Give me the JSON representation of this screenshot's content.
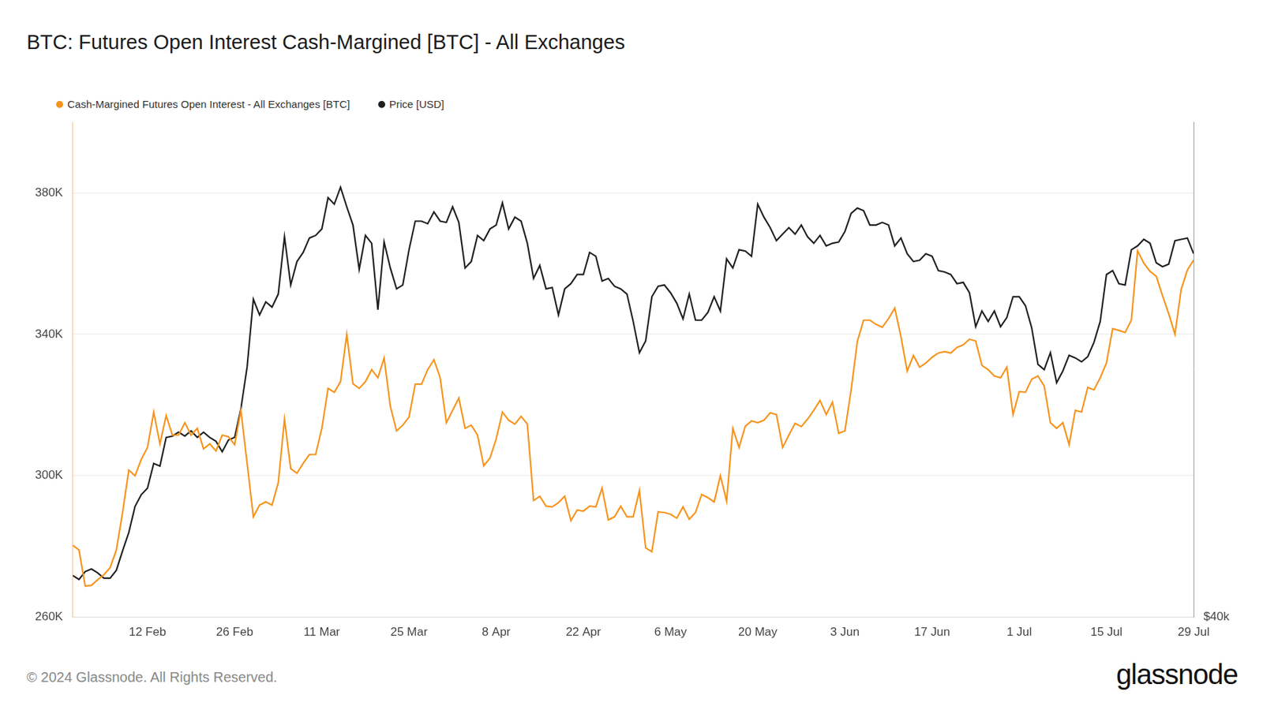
{
  "chart_data": {
    "type": "line",
    "title": "BTC: Futures Open Interest Cash-Margined [BTC] - All Exchanges",
    "categories": [
      null,
      null,
      null,
      null,
      null,
      null,
      null,
      null,
      null,
      null,
      null,
      null,
      "12 Feb",
      null,
      null,
      null,
      null,
      null,
      null,
      null,
      null,
      null,
      null,
      null,
      null,
      null,
      "26 Feb",
      null,
      null,
      null,
      null,
      null,
      null,
      null,
      null,
      null,
      null,
      null,
      null,
      null,
      "11 Mar",
      null,
      null,
      null,
      null,
      null,
      null,
      null,
      null,
      null,
      null,
      null,
      null,
      null,
      "25 Mar",
      null,
      null,
      null,
      null,
      null,
      null,
      null,
      null,
      null,
      null,
      null,
      null,
      null,
      "8 Apr",
      null,
      null,
      null,
      null,
      null,
      null,
      null,
      null,
      null,
      null,
      null,
      null,
      null,
      "22 Apr",
      null,
      null,
      null,
      null,
      null,
      null,
      null,
      null,
      null,
      null,
      null,
      null,
      null,
      "6 May",
      null,
      null,
      null,
      null,
      null,
      null,
      null,
      null,
      null,
      null,
      null,
      null,
      null,
      "20 May",
      null,
      null,
      null,
      null,
      null,
      null,
      null,
      null,
      null,
      null,
      null,
      null,
      null,
      "3 Jun",
      null,
      null,
      null,
      null,
      null,
      null,
      null,
      null,
      null,
      null,
      null,
      null,
      null,
      "17 Jun",
      null,
      null,
      null,
      null,
      null,
      null,
      null,
      null,
      null,
      null,
      null,
      null,
      null,
      "1 Jul",
      null,
      null,
      null,
      null,
      null,
      null,
      null,
      null,
      null,
      null,
      null,
      null,
      null,
      "15 Jul",
      null,
      null,
      null,
      null,
      null,
      null,
      null,
      null,
      null,
      null,
      null,
      null,
      null,
      "29 Jul"
    ],
    "series": [
      {
        "name": "Cash-Margined Futures Open Interest - All Exchanges [BTC]",
        "color": "#f7931a",
        "values": [
          280300,
          279000,
          268800,
          269000,
          270600,
          272000,
          274000,
          279000,
          289600,
          301600,
          300000,
          304600,
          308000,
          318000,
          309000,
          317000,
          311500,
          311500,
          315000,
          311500,
          313400,
          307600,
          309000,
          307000,
          311500,
          311000,
          308800,
          318500,
          303500,
          288400,
          291700,
          292600,
          291700,
          298000,
          316000,
          302000,
          300700,
          303500,
          306000,
          306000,
          313400,
          324700,
          323600,
          326600,
          340000,
          326000,
          324700,
          326600,
          330000,
          327700,
          333300,
          319600,
          312700,
          314300,
          316600,
          325900,
          325900,
          330000,
          332800,
          327700,
          315000,
          318500,
          322000,
          313400,
          314300,
          311500,
          302800,
          305000,
          310400,
          318000,
          315700,
          314600,
          316800,
          314600,
          293000,
          294200,
          291400,
          291200,
          292400,
          294200,
          287300,
          290300,
          290000,
          291400,
          291200,
          296500,
          287500,
          288400,
          291400,
          288400,
          288400,
          295800,
          279600,
          278500,
          289800,
          289600,
          289100,
          288000,
          291200,
          287700,
          289600,
          294700,
          293800,
          292600,
          300000,
          292800,
          313400,
          308000,
          314000,
          315500,
          315000,
          315700,
          317800,
          317300,
          308000,
          311500,
          314800,
          313900,
          316000,
          318500,
          321300,
          317300,
          320800,
          312000,
          312700,
          324300,
          338000,
          344000,
          344000,
          342800,
          342000,
          344400,
          347400,
          339300,
          329600,
          334000,
          330700,
          331900,
          333500,
          334700,
          335100,
          334700,
          336300,
          337000,
          338600,
          338100,
          331200,
          330000,
          328200,
          327700,
          330700,
          317300,
          323800,
          323600,
          327300,
          328200,
          325400,
          315000,
          313400,
          315000,
          308800,
          318500,
          318000,
          325000,
          324300,
          327700,
          331900,
          341600,
          341100,
          340500,
          344000,
          363600,
          360100,
          357800,
          356400,
          350900,
          345800,
          340000,
          352700,
          358200,
          361000
        ]
      },
      {
        "name": "Price [USD]",
        "color": "#1f1f1f",
        "axis": "y2",
        "values": [
          43200,
          42900,
          43500,
          43700,
          43400,
          43000,
          43000,
          43600,
          45100,
          46500,
          48500,
          49400,
          49900,
          51800,
          51600,
          53800,
          53900,
          54200,
          53900,
          54300,
          53800,
          54200,
          53800,
          53500,
          52700,
          53600,
          53800,
          56000,
          59200,
          64400,
          63200,
          64200,
          63800,
          64800,
          69200,
          65500,
          67300,
          68000,
          69100,
          69300,
          69800,
          72200,
          71700,
          73000,
          71500,
          70100,
          66700,
          69300,
          68700,
          63600,
          68800,
          66800,
          65200,
          65500,
          68200,
          70400,
          70400,
          70200,
          71100,
          70400,
          70300,
          71500,
          70300,
          66800,
          67300,
          69300,
          68900,
          69800,
          70100,
          71800,
          69800,
          70700,
          70400,
          68700,
          66000,
          67000,
          65200,
          65300,
          63200,
          65200,
          65600,
          66300,
          66300,
          68000,
          67700,
          65800,
          66000,
          65400,
          65200,
          64800,
          62700,
          60300,
          61200,
          64600,
          65400,
          65500,
          64900,
          64100,
          62900,
          64800,
          62800,
          62800,
          63400,
          64600,
          63500,
          67500,
          66800,
          68200,
          68100,
          67700,
          71700,
          70700,
          69900,
          68900,
          69400,
          69900,
          69400,
          70100,
          69200,
          68700,
          69300,
          68500,
          68700,
          68800,
          69600,
          71000,
          71400,
          71200,
          70100,
          70100,
          70300,
          70100,
          68500,
          69100,
          67900,
          67300,
          67400,
          67900,
          67700,
          66600,
          66500,
          66300,
          65600,
          65700,
          64900,
          62300,
          63500,
          62700,
          63500,
          62300,
          63000,
          64600,
          64600,
          63900,
          62200,
          59400,
          59000,
          60300,
          58000,
          58900,
          60100,
          59900,
          59600,
          60000,
          61100,
          62700,
          66300,
          66600,
          65600,
          65500,
          68200,
          68500,
          69000,
          68700,
          67200,
          66900,
          67100,
          68900,
          69000,
          69100,
          67900
        ]
      }
    ],
    "ylim": [
      260000,
      400000
    ],
    "yticks": [
      {
        "value": 260000,
        "label": "260K"
      },
      {
        "value": 300000,
        "label": "300K"
      },
      {
        "value": 340000,
        "label": "340K"
      },
      {
        "value": 380000,
        "label": "380K"
      }
    ],
    "y2lim": [
      40000,
      78000
    ],
    "y2ticks": [
      {
        "value": 40000,
        "label": "$40k"
      }
    ],
    "grid": true,
    "legend": "top-left"
  },
  "footer": {
    "copyright": "© 2024 Glassnode. All Rights Reserved.",
    "brand": "glassnode"
  }
}
